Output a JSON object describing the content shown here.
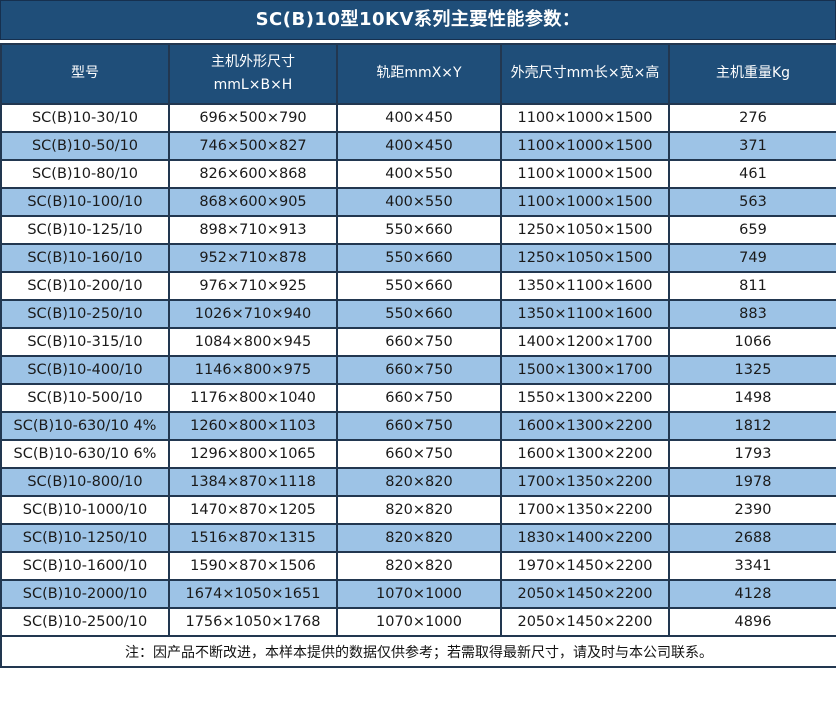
{
  "title": "SC(B)10型10KV系列主要性能参数：",
  "note": "注：因产品不断改进，本样本提供的数据仅供参考；若需取得最新尺寸，请及时与本公司联系。",
  "colors": {
    "header_bg": "#1F4E79",
    "row_alt_bg": "#9DC3E6",
    "row_bg": "#FFFFFF",
    "border": "#223750",
    "header_text": "#FFFFFF",
    "body_text": "#1A1A1A"
  },
  "table": {
    "columns": [
      {
        "lines": [
          "型号"
        ]
      },
      {
        "lines": [
          "主机外形尺寸",
          "mmL×B×H"
        ]
      },
      {
        "lines": [
          "轨距mmX×Y"
        ]
      },
      {
        "lines": [
          "外壳尺寸mm长×宽×高"
        ]
      },
      {
        "lines": [
          "主机重量Kg"
        ]
      }
    ],
    "rows": [
      [
        "SC(B)10-30/10",
        "696×500×790",
        "400×450",
        "1100×1000×1500",
        "276"
      ],
      [
        "SC(B)10-50/10",
        "746×500×827",
        "400×450",
        "1100×1000×1500",
        "371"
      ],
      [
        "SC(B)10-80/10",
        "826×600×868",
        "400×550",
        "1100×1000×1500",
        "461"
      ],
      [
        "SC(B)10-100/10",
        "868×600×905",
        "400×550",
        "1100×1000×1500",
        "563"
      ],
      [
        "SC(B)10-125/10",
        "898×710×913",
        "550×660",
        "1250×1050×1500",
        "659"
      ],
      [
        "SC(B)10-160/10",
        "952×710×878",
        "550×660",
        "1250×1050×1500",
        "749"
      ],
      [
        "SC(B)10-200/10",
        "976×710×925",
        "550×660",
        "1350×1100×1600",
        "811"
      ],
      [
        "SC(B)10-250/10",
        "1026×710×940",
        "550×660",
        "1350×1100×1600",
        "883"
      ],
      [
        "SC(B)10-315/10",
        "1084×800×945",
        "660×750",
        "1400×1200×1700",
        "1066"
      ],
      [
        "SC(B)10-400/10",
        "1146×800×975",
        "660×750",
        "1500×1300×1700",
        "1325"
      ],
      [
        "SC(B)10-500/10",
        "1176×800×1040",
        "660×750",
        "1550×1300×2200",
        "1498"
      ],
      [
        "SC(B)10-630/10 4%",
        "1260×800×1103",
        "660×750",
        "1600×1300×2200",
        "1812"
      ],
      [
        "SC(B)10-630/10 6%",
        "1296×800×1065",
        "660×750",
        "1600×1300×2200",
        "1793"
      ],
      [
        "SC(B)10-800/10",
        "1384×870×1118",
        "820×820",
        "1700×1350×2200",
        "1978"
      ],
      [
        "SC(B)10-1000/10",
        "1470×870×1205",
        "820×820",
        "1700×1350×2200",
        "2390"
      ],
      [
        "SC(B)10-1250/10",
        "1516×870×1315",
        "820×820",
        "1830×1400×2200",
        "2688"
      ],
      [
        "SC(B)10-1600/10",
        "1590×870×1506",
        "820×820",
        "1970×1450×2200",
        "3341"
      ],
      [
        "SC(B)10-2000/10",
        "1674×1050×1651",
        "1070×1000",
        "2050×1450×2200",
        "4128"
      ],
      [
        "SC(B)10-2500/10",
        "1756×1050×1768",
        "1070×1000",
        "2050×1450×2200",
        "4896"
      ]
    ]
  }
}
